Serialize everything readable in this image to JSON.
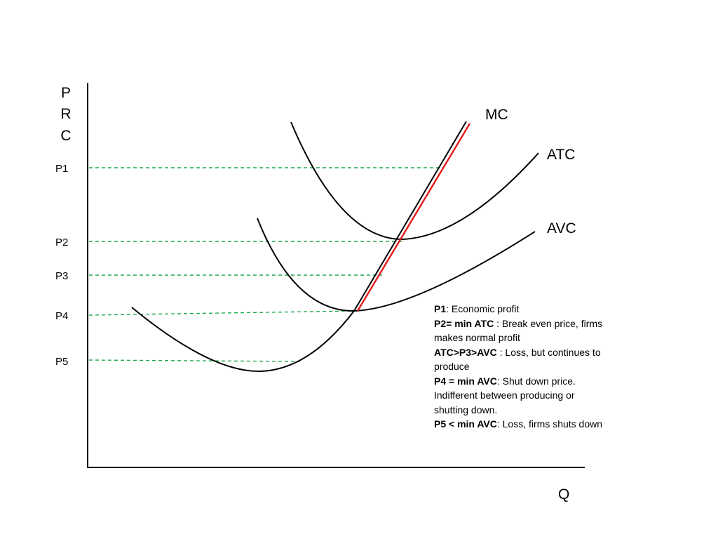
{
  "axes": {
    "y_label_letters": [
      "P",
      "R",
      "C"
    ],
    "x_label": "Q"
  },
  "price_levels": [
    {
      "label": "P1"
    },
    {
      "label": "P2"
    },
    {
      "label": "P3"
    },
    {
      "label": "P4"
    },
    {
      "label": "P5"
    }
  ],
  "curves": {
    "mc": "MC",
    "atc": "ATC",
    "avc": "AVC"
  },
  "notes": [
    {
      "bold": "P1",
      "text": ": Economic profit"
    },
    {
      "bold": "P2= min ATC",
      "text": " : Break even price, firms makes normal profit"
    },
    {
      "bold": "ATC>P3>AVC",
      "text": " : Loss, but continues to produce"
    },
    {
      "bold": "P4 = min AVC",
      "text": ": Shut down price. Indifferent between producing or shutting down."
    },
    {
      "bold": "P5 < min AVC",
      "text": ": Loss, firms shuts down"
    }
  ],
  "colors": {
    "curve": "#000000",
    "supply_highlight": "#e31b1b",
    "guide_line": "#1fa84f"
  }
}
